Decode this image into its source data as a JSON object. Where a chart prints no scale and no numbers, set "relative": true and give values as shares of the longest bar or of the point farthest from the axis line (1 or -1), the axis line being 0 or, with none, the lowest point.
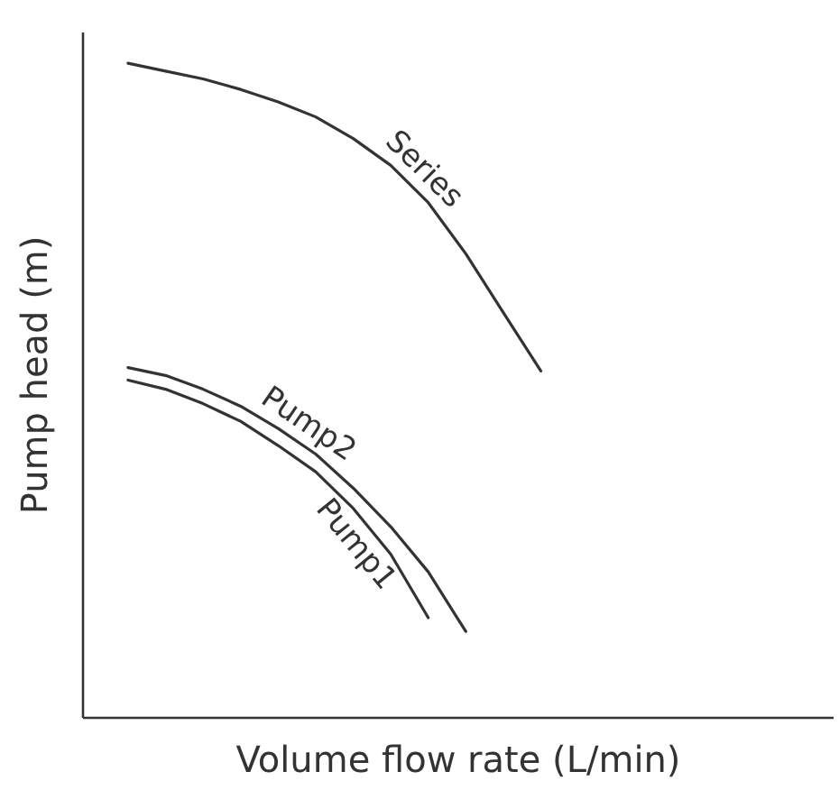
{
  "chart_data": {
    "type": "line",
    "xlabel": "Volume flow rate (L/min)",
    "ylabel": "Pump head (m)",
    "relative": true,
    "categories": [
      null,
      null,
      null,
      null,
      null,
      null,
      null,
      null,
      null,
      null,
      null,
      null
    ],
    "series": [
      {
        "name": "Pump1",
        "color": "#333333",
        "values": [
          0.516,
          0.502,
          0.48,
          0.453,
          0.416,
          0.376,
          0.32,
          0.25,
          0.153,
          null,
          null,
          null
        ]
      },
      {
        "name": "Pump2",
        "color": "#333333",
        "values": [
          0.535,
          0.523,
          0.502,
          0.476,
          0.442,
          0.403,
          0.351,
          0.292,
          0.223,
          0.132,
          null,
          null
        ]
      },
      {
        "name": "Series",
        "color": "#333333",
        "values": [
          1.0,
          0.988,
          0.976,
          0.96,
          0.941,
          0.918,
          0.885,
          0.844,
          0.787,
          0.709,
          0.619,
          0.53
        ]
      }
    ]
  }
}
